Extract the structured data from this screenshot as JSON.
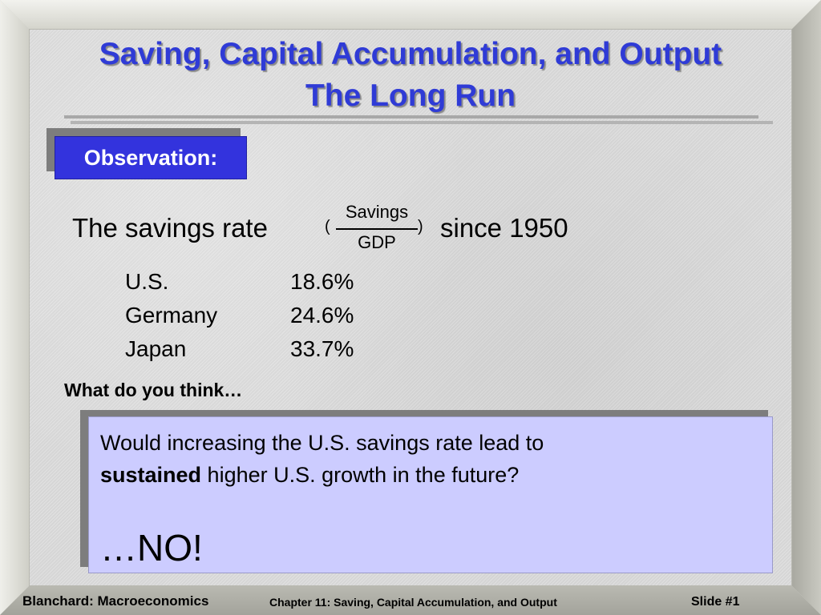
{
  "title": {
    "line1": "Saving, Capital Accumulation, and Output",
    "line2": "The Long Run"
  },
  "observation_label": "Observation:",
  "savings": {
    "lead": "The savings rate",
    "paren_open": "(",
    "numerator": "Savings",
    "denominator": "GDP",
    "paren_close": ")",
    "trail": "since 1950"
  },
  "countries": [
    {
      "name": "U.S.",
      "rate": "18.6%"
    },
    {
      "name": "Germany",
      "rate": "24.6%"
    },
    {
      "name": "Japan",
      "rate": "33.7%"
    }
  ],
  "question_heading": "What do you think…",
  "question": {
    "line1": "Would increasing the U.S. savings rate lead to",
    "bold_word": "sustained",
    "line2_rest": " higher U.S. growth in the future?",
    "answer": "…NO!"
  },
  "footer": {
    "left": "Blanchard: Macroeconomics",
    "center": "Chapter 11: Saving, Capital Accumulation, and Output",
    "right": "Slide #1"
  },
  "colors": {
    "title": "#2f3bd6",
    "observation_bg": "#3333dd",
    "question_bg": "#ccccff"
  }
}
